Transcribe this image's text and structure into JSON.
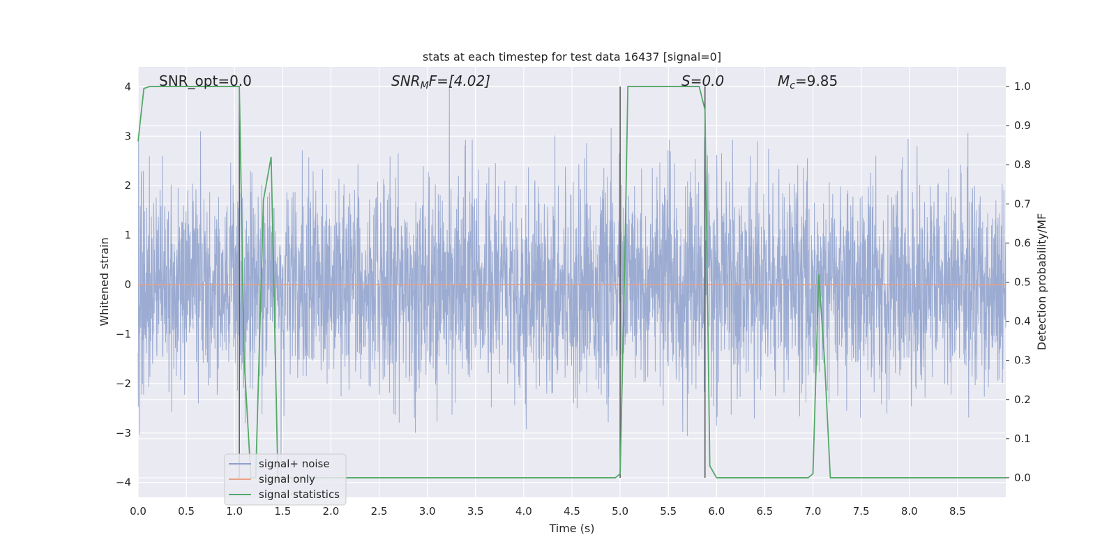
{
  "chart_data": {
    "type": "line",
    "title": "stats at each timestep for test data 16437 [signal=0]",
    "xlabel": "Time (s)",
    "ylabel_left": "Whitened strain",
    "ylabel_right": "Detection probability/MF",
    "xlim": [
      0.0,
      9.0
    ],
    "ylim_left": [
      -4.3,
      4.4
    ],
    "ylim_right": [
      -0.05,
      1.05
    ],
    "x_ticks": [
      "0.0",
      "0.5",
      "1.0",
      "1.5",
      "2.0",
      "2.5",
      "3.0",
      "3.5",
      "4.0",
      "4.5",
      "5.0",
      "5.5",
      "6.0",
      "6.5",
      "7.0",
      "7.5",
      "8.0",
      "8.5"
    ],
    "y_left_ticks": [
      "4",
      "3",
      "2",
      "1",
      "0",
      "−1",
      "−2",
      "−3",
      "−4"
    ],
    "y_right_ticks": [
      "1.0",
      "0.9",
      "0.8",
      "0.7",
      "0.6",
      "0.5",
      "0.4",
      "0.3",
      "0.2",
      "0.1",
      "0.0"
    ],
    "grid": true,
    "annotations": {
      "snr_opt": "SNR_opt=0.0",
      "snr_mf_base": "SNR",
      "snr_mf_sub": "M",
      "snr_mf_rest": "F=[4.02]",
      "s_val": "S=0.0",
      "mc_base": "M",
      "mc_sub": "c",
      "mc_rest": "=9.85"
    },
    "legend": {
      "placement": "lower-left",
      "entries": [
        "signal+ noise",
        "signal only",
        "signal statistics"
      ]
    },
    "colors": {
      "noise": "#8da0cb",
      "signal_only": "#e8a287",
      "statistics": "#55a868",
      "markers": "#555555",
      "plot_bg": "#eaeaf2",
      "grid": "#ffffff"
    },
    "series": [
      {
        "name": "signal+ noise",
        "description_units": "whitened strain, dense random noise, amplitude roughly ±1.6 with spikes to ±4"
      },
      {
        "name": "signal only",
        "x": [
          0.0,
          9.0
        ],
        "y": [
          0.0,
          0.0
        ]
      },
      {
        "name": "signal statistics",
        "x": [
          0.0,
          0.06,
          0.12,
          1.0,
          1.05,
          1.1,
          1.17,
          1.22,
          1.3,
          1.38,
          1.45,
          1.5,
          2.0,
          4.95,
          5.0,
          5.05,
          5.08,
          5.5,
          5.82,
          5.88,
          5.93,
          6.0,
          6.5,
          6.95,
          7.0,
          7.06,
          7.12,
          7.18,
          7.5,
          9.0
        ],
        "y": [
          0.86,
          0.995,
          1.0,
          1.0,
          1.0,
          0.3,
          0.0,
          0.0,
          0.71,
          0.82,
          0.0,
          0.0,
          0.0,
          0.0,
          0.01,
          0.58,
          1.0,
          1.0,
          1.0,
          0.94,
          0.03,
          0.0,
          0.0,
          0.0,
          0.01,
          0.52,
          0.3,
          0.0,
          0.0,
          0.0
        ]
      }
    ],
    "vertical_markers_x": [
      1.05,
      5.0,
      5.88
    ]
  }
}
